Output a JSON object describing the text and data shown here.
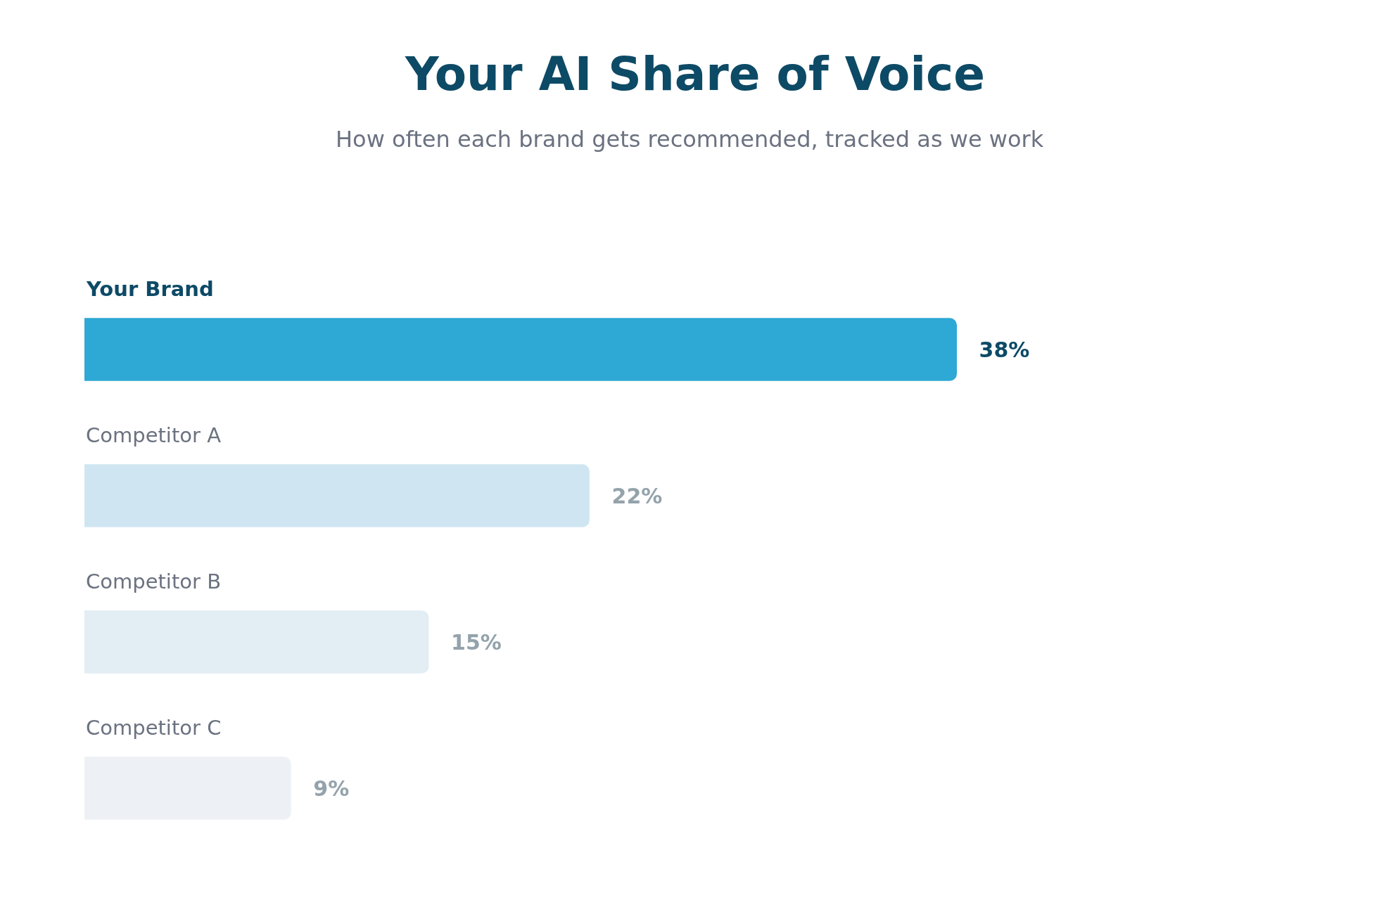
{
  "chart_data": {
    "type": "bar",
    "orientation": "horizontal",
    "title": "Your AI Share of Voice",
    "subtitle": "How often each brand gets recommended, tracked as we work",
    "categories": [
      "Your Brand",
      "Competitor A",
      "Competitor B",
      "Competitor C"
    ],
    "values": [
      38,
      22,
      15,
      9
    ],
    "colors": [
      "#2ea8d5",
      "#cfe6f2",
      "#e2edf4",
      "#edf1f5"
    ],
    "value_labels": [
      "38%",
      "22%",
      "15%",
      "9%"
    ]
  }
}
